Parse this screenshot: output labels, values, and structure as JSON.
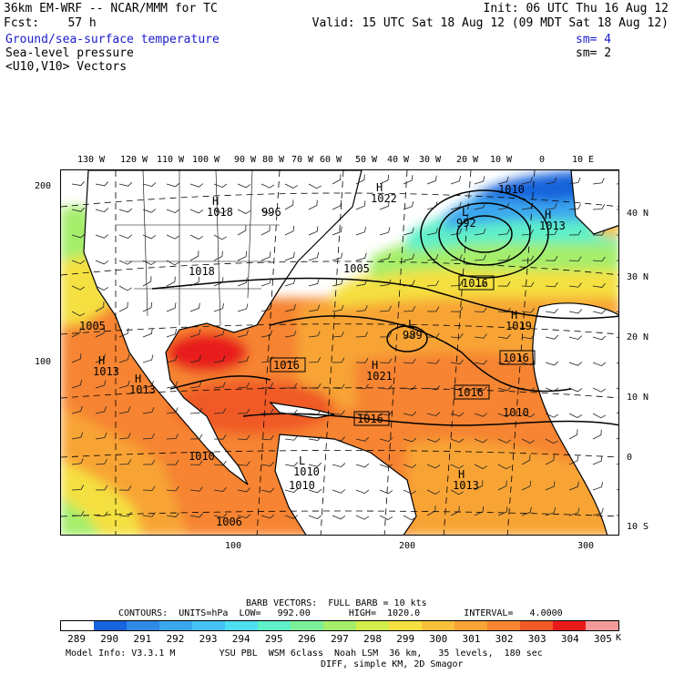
{
  "header": {
    "model_title": "36km EM-WRF -- NCAR/MMM for TC",
    "init": "Init: 06 UTC Thu 16 Aug 12",
    "fcst": "Fcst:    57 h",
    "valid": "Valid: 15 UTC Sat 18 Aug 12 (09 MDT Sat 18 Aug 12)",
    "field1": "Ground/sea-surface temperature",
    "field1_sm": "sm= 4",
    "field2": "Sea-level pressure",
    "field2_sm": "sm= 2",
    "field3": "<U10,V10> Vectors"
  },
  "map": {
    "lon_labels": [
      "130 W",
      "120 W",
      "110 W",
      "100 W",
      "90 W",
      "80 W",
      "70 W",
      "60 W",
      "50 W",
      "40 W",
      "30 W",
      "20 W",
      "10 W",
      "0",
      "10 E"
    ],
    "lat_labels": [
      "40 N",
      "30 N",
      "20 N",
      "10 N",
      "0",
      "10 S"
    ],
    "grid_y_labels": [
      "200",
      "100"
    ],
    "grid_x_labels": [
      "100",
      "200",
      "300"
    ],
    "pressure_labels": [
      {
        "text": "1022",
        "kind": "H"
      },
      {
        "text": "992",
        "kind": "L"
      },
      {
        "text": "1013",
        "kind": "H"
      },
      {
        "text": "1005",
        "kind": "plain"
      },
      {
        "text": "1016",
        "kind": "box"
      },
      {
        "text": "989",
        "kind": "L"
      },
      {
        "text": "1019",
        "kind": "H"
      },
      {
        "text": "1016",
        "kind": "box"
      },
      {
        "text": "1016",
        "kind": "box"
      },
      {
        "text": "1021",
        "kind": "H"
      },
      {
        "text": "1016",
        "kind": "box"
      },
      {
        "text": "1016",
        "kind": "box"
      },
      {
        "text": "1010",
        "kind": "plain"
      },
      {
        "text": "1013",
        "kind": "H"
      },
      {
        "text": "1013",
        "kind": "H"
      },
      {
        "text": "1013",
        "kind": "H"
      },
      {
        "text": "1010",
        "kind": "plain"
      },
      {
        "text": "1010",
        "kind": "L"
      },
      {
        "text": "1018",
        "kind": "plain"
      },
      {
        "text": "1018",
        "kind": "H"
      },
      {
        "text": "996",
        "kind": "plain"
      },
      {
        "text": "1006",
        "kind": "plain"
      },
      {
        "text": "1005",
        "kind": "plain"
      },
      {
        "text": "1010",
        "kind": "plain"
      },
      {
        "text": "1010",
        "kind": "plain"
      }
    ]
  },
  "footer": {
    "barb": "BARB VECTORS:  FULL BARB = 10 kts",
    "contours": "CONTOURS:  UNITS=hPa  LOW=   992.00       HIGH=  1020.0        INTERVAL=   4.0000",
    "unit": "K",
    "model_info": "Model Info: V3.3.1 M        YSU PBL  WSM 6class  Noah LSM  36 km,   35 levels,  180 sec",
    "model_info2": "DIFF, simple KM, 2D Smagor"
  },
  "colorbar": {
    "labels": [
      "289",
      "290",
      "291",
      "292",
      "293",
      "294",
      "295",
      "296",
      "297",
      "298",
      "299",
      "300",
      "301",
      "302",
      "303",
      "304",
      "305"
    ],
    "colors": [
      "#ffffff",
      "#1764dc",
      "#2e8ae6",
      "#3aa6ee",
      "#45c2f2",
      "#4ee0f0",
      "#5ef0c8",
      "#7cf098",
      "#a4ee6a",
      "#d2ee4a",
      "#f4e040",
      "#f8c03a",
      "#f8a436",
      "#f68430",
      "#f05a26",
      "#e81a1a",
      "#f29a9a"
    ]
  }
}
